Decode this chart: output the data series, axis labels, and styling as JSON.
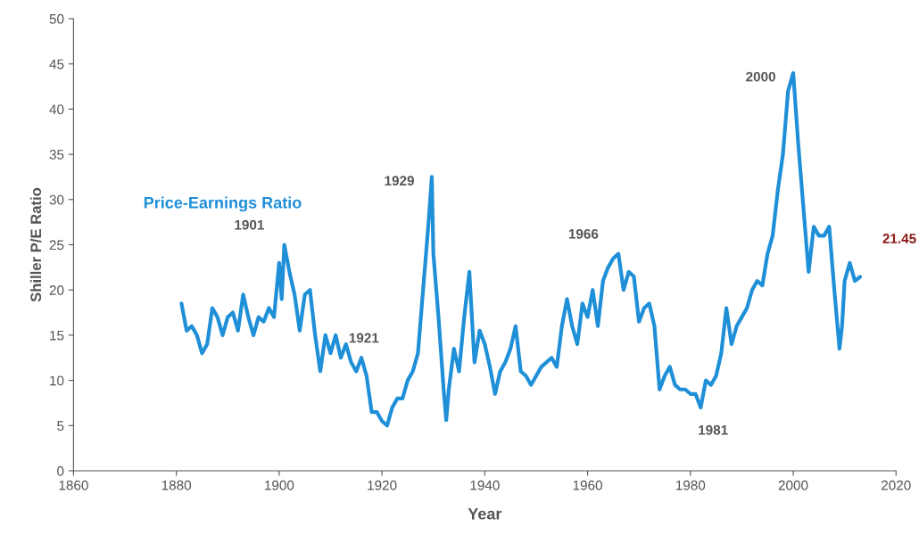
{
  "chart_data": {
    "type": "line",
    "xlabel": "Year",
    "ylabel": "Shiller P/E Ratio",
    "xlim": [
      1860,
      2020
    ],
    "xticks": [
      1860,
      1880,
      1900,
      1920,
      1940,
      1960,
      1980,
      2000,
      2020
    ],
    "ylim": [
      0,
      50
    ],
    "yticks": [
      0,
      5,
      10,
      15,
      20,
      25,
      30,
      35,
      40,
      45,
      50
    ],
    "grid": false,
    "legend": false,
    "x": [
      1881,
      1881.5,
      1882,
      1883,
      1884,
      1885,
      1886,
      1887,
      1888,
      1889,
      1890,
      1891,
      1892,
      1893,
      1894,
      1895,
      1896,
      1897,
      1898,
      1899,
      1900,
      1900.5,
      1901,
      1902,
      1903,
      1904,
      1905,
      1906,
      1907,
      1908,
      1909,
      1910,
      1911,
      1912,
      1913,
      1914,
      1915,
      1916,
      1917,
      1918,
      1919,
      1920,
      1921,
      1922,
      1923,
      1924,
      1925,
      1926,
      1927,
      1928,
      1929,
      1929.7,
      1930,
      1931,
      1932,
      1932.5,
      1933,
      1934,
      1935,
      1936,
      1937,
      1938,
      1939,
      1940,
      1941,
      1942,
      1943,
      1944,
      1945,
      1946,
      1947,
      1948,
      1949,
      1950,
      1951,
      1952,
      1953,
      1954,
      1955,
      1956,
      1957,
      1958,
      1959,
      1960,
      1961,
      1962,
      1963,
      1964,
      1965,
      1966,
      1967,
      1968,
      1969,
      1970,
      1971,
      1972,
      1973,
      1974,
      1975,
      1976,
      1977,
      1978,
      1979,
      1980,
      1981,
      1982,
      1983,
      1984,
      1985,
      1986,
      1987,
      1988,
      1989,
      1990,
      1991,
      1992,
      1993,
      1994,
      1995,
      1996,
      1997,
      1998,
      1999,
      2000,
      2001,
      2002,
      2003,
      2004,
      2005,
      2006,
      2007,
      2008,
      2009,
      2009.5,
      2010,
      2011,
      2012,
      2013
    ],
    "series": [
      {
        "name": "Price-Earnings Ratio",
        "color": "#1f8fd8",
        "values": [
          18.5,
          17,
          15.5,
          16,
          15,
          13,
          14,
          18,
          17,
          15,
          17,
          17.5,
          15.5,
          19.5,
          17,
          15,
          17,
          16.5,
          18,
          17,
          23,
          19,
          25,
          22,
          19.5,
          15.5,
          19.5,
          20,
          15,
          11,
          15,
          13,
          15,
          12.5,
          14,
          12,
          11,
          12.5,
          10.5,
          6.5,
          6.5,
          5.5,
          5,
          7,
          8,
          8,
          10,
          11,
          13,
          20,
          27,
          32.5,
          24,
          17,
          9,
          5.6,
          9,
          13.5,
          11,
          17,
          22,
          12,
          15.5,
          14,
          11.5,
          8.5,
          11,
          12,
          13.5,
          16,
          11,
          10.5,
          9.5,
          10.5,
          11.5,
          12,
          12.5,
          11.5,
          16,
          19,
          16,
          14,
          18.5,
          17,
          20,
          16,
          21,
          22.5,
          23.5,
          24,
          20,
          22,
          21.5,
          16.5,
          18,
          18.5,
          16,
          9,
          10.5,
          11.5,
          9.5,
          9,
          9,
          8.5,
          8.5,
          7,
          10,
          9.5,
          10.5,
          13,
          18,
          14,
          16,
          17,
          18,
          20,
          21,
          20.5,
          24,
          26,
          31,
          35,
          42,
          44,
          36,
          29,
          22,
          27,
          26,
          26,
          27,
          20,
          13.5,
          16,
          21,
          23,
          21,
          21.45
        ],
        "value_labels": [
          null,
          null,
          null,
          null,
          null,
          null,
          null,
          null,
          null,
          null,
          null,
          null,
          null,
          null,
          null,
          null,
          null,
          null,
          null,
          null,
          null,
          null,
          null,
          null,
          null,
          null,
          null,
          null,
          null,
          null,
          null,
          null,
          null,
          null,
          null,
          null,
          null,
          null,
          null,
          null,
          null,
          null,
          null,
          null,
          null,
          null,
          null,
          null,
          null,
          null,
          null,
          null,
          null,
          null,
          null,
          null,
          null,
          null,
          null,
          null,
          null,
          null,
          null,
          null,
          null,
          null,
          null,
          null,
          null,
          null,
          null,
          null,
          null,
          null,
          null,
          null,
          null,
          null,
          null,
          null,
          null,
          null,
          null,
          null,
          null,
          null,
          null,
          null,
          null,
          null,
          null,
          null,
          null,
          null,
          null,
          null,
          null,
          null,
          null,
          null,
          null,
          null,
          null,
          null,
          null,
          null,
          null,
          null,
          null,
          null,
          null,
          null,
          null,
          null,
          null,
          null,
          null,
          null,
          null,
          null,
          null,
          null,
          null,
          null,
          null,
          null,
          null,
          null,
          null,
          null,
          null,
          null,
          null,
          null,
          null,
          null,
          null,
          "21.45"
        ]
      }
    ],
    "annotations": [
      {
        "text": "1901",
        "x": 1901,
        "y": 25
      },
      {
        "text": "1921",
        "x": 1916,
        "y": 12.5
      },
      {
        "text": "1929",
        "x": 1929.7,
        "y": 32.5
      },
      {
        "text": "1966",
        "x": 1966,
        "y": 24
      },
      {
        "text": "1981",
        "x": 1982,
        "y": 7
      },
      {
        "text": "2000",
        "x": 2000,
        "y": 44
      }
    ]
  }
}
